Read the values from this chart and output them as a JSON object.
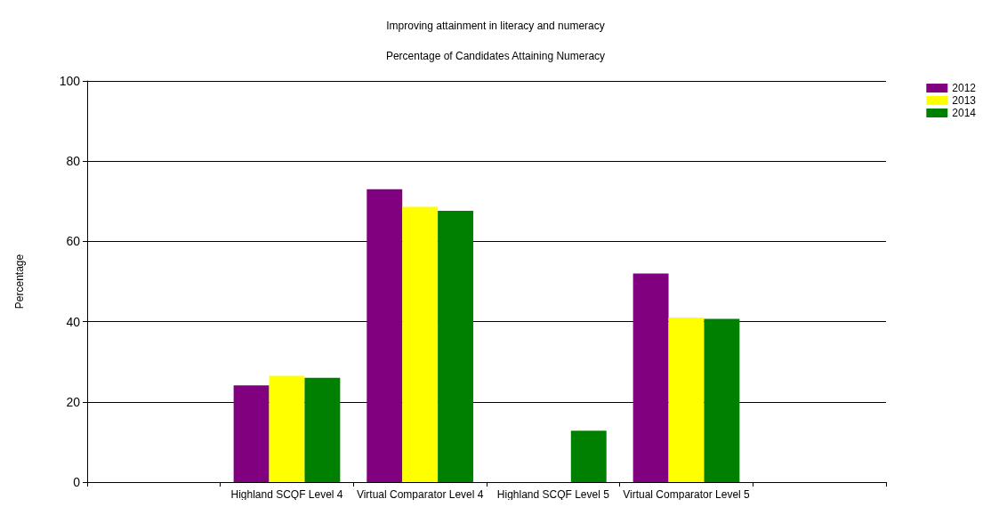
{
  "chart_data": {
    "type": "bar",
    "title": "Improving attainment in literacy and numeracy",
    "subtitle": "Percentage of Candidates Attaining Numeracy",
    "ylabel": "Percentage",
    "categories": [
      null,
      "Highland SCQF Level 4",
      "Virtual Comparator Level 4",
      "Highland SCQF Level 5",
      "Virtual Comparator Level 5",
      null
    ],
    "series": [
      {
        "name": "2012",
        "color": "#800080",
        "values": [
          null,
          24.1,
          73.0,
          null,
          52.0,
          null
        ]
      },
      {
        "name": "2013",
        "color": "#ffff00",
        "values": [
          null,
          26.5,
          68.6,
          null,
          41.0,
          null
        ]
      },
      {
        "name": "2014",
        "color": "#008000",
        "values": [
          null,
          26.0,
          67.6,
          12.8,
          40.7,
          null
        ]
      }
    ],
    "ylim": [
      0,
      100
    ],
    "yticks": [
      0,
      20,
      40,
      60,
      80,
      100
    ],
    "grid": "y",
    "legend": "top right"
  }
}
